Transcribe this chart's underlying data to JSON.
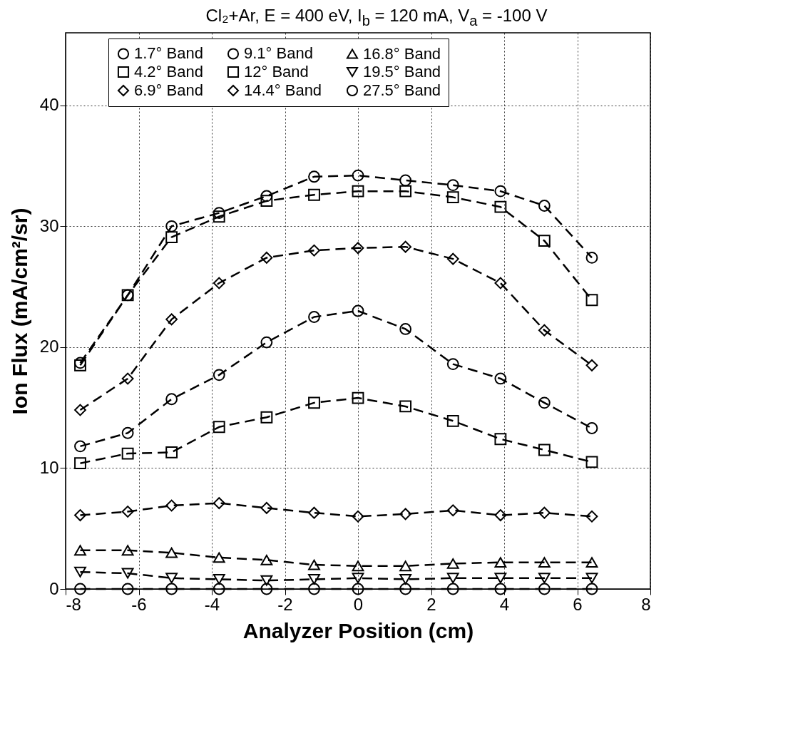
{
  "chart_data": {
    "type": "line",
    "title": "Cl₂+Ar, E = 400 eV, I$_{b}$ = 120 mA, V$_{a}$ = -100 V",
    "xlabel": "Analyzer Position (cm)",
    "ylabel": "Ion Flux (mA/cm²/sr)",
    "x": [
      -7.6,
      -6.3,
      -5.1,
      -3.8,
      -2.5,
      -1.2,
      0,
      1.3,
      2.6,
      3.9,
      5.1,
      6.4
    ],
    "series": [
      {
        "name": "1.7° Band",
        "color": "#000000",
        "marker": "circle",
        "values": [
          18.7,
          24.3,
          30.0,
          31.1,
          32.5,
          34.1,
          34.2,
          33.8,
          33.4,
          32.9,
          31.7,
          27.4
        ]
      },
      {
        "name": "4.2° Band",
        "color": "#000000",
        "marker": "square",
        "values": [
          18.5,
          24.3,
          29.1,
          30.8,
          32.1,
          32.6,
          32.9,
          32.9,
          32.4,
          31.6,
          28.8,
          23.9
        ]
      },
      {
        "name": "6.9° Band",
        "color": "#000000",
        "marker": "diamond",
        "values": [
          14.8,
          17.4,
          22.3,
          25.3,
          27.4,
          28.0,
          28.2,
          28.3,
          27.3,
          25.3,
          21.4,
          18.5
        ]
      },
      {
        "name": "9.1° Band",
        "color": "#000000",
        "marker": "circle",
        "values": [
          11.8,
          12.9,
          15.7,
          17.7,
          20.4,
          22.5,
          23.0,
          21.5,
          18.6,
          17.4,
          15.4,
          13.3
        ]
      },
      {
        "name": "12° Band",
        "color": "#000000",
        "marker": "square",
        "values": [
          10.4,
          11.2,
          11.3,
          13.4,
          14.2,
          15.4,
          15.8,
          15.1,
          13.9,
          12.4,
          11.5,
          10.5
        ]
      },
      {
        "name": "14.4° Band",
        "color": "#000000",
        "marker": "diamond",
        "values": [
          6.1,
          6.4,
          6.9,
          7.1,
          6.7,
          6.3,
          6.0,
          6.2,
          6.5,
          6.1,
          6.3,
          6.0
        ]
      },
      {
        "name": "16.8° Band",
        "color": "#000000",
        "marker": "triangle",
        "values": [
          3.2,
          3.2,
          3.0,
          2.6,
          2.4,
          2.0,
          1.9,
          1.9,
          2.1,
          2.2,
          2.2,
          2.2
        ]
      },
      {
        "name": "19.5° Band",
        "color": "#000000",
        "marker": "triangle-down",
        "values": [
          1.4,
          1.3,
          0.9,
          0.8,
          0.7,
          0.8,
          0.9,
          0.8,
          0.9,
          0.9,
          0.9,
          0.9
        ]
      },
      {
        "name": "27.5° Band",
        "color": "#000000",
        "marker": "circle",
        "values": [
          0,
          0,
          0,
          0,
          0,
          0,
          0,
          0,
          0,
          0,
          0,
          0
        ]
      }
    ],
    "xlim": [
      -8,
      8
    ],
    "xticks": [
      -8,
      -6,
      -4,
      -2,
      0,
      2,
      4,
      6,
      8
    ],
    "ylim": [
      0,
      46
    ],
    "yticks": [
      0,
      10,
      20,
      30,
      40
    ],
    "grid": true,
    "legend": "top",
    "line_style": "dashed"
  }
}
